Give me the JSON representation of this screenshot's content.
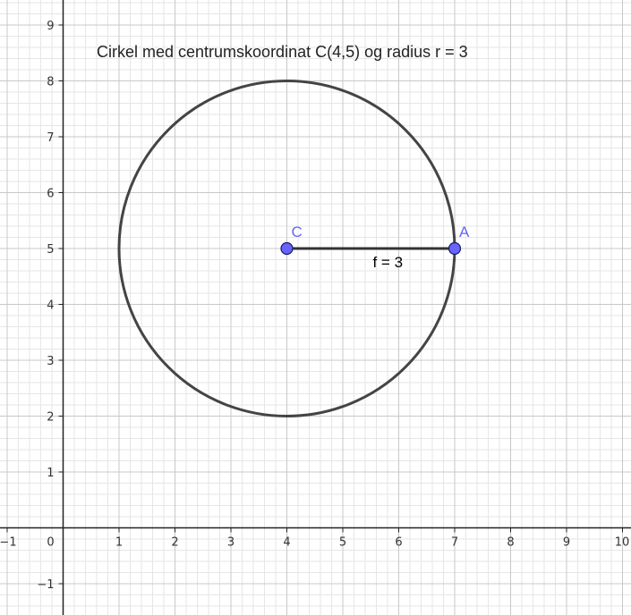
{
  "caption": "Cirkel med centrumskoordinat C(4,5) og radius r = 3",
  "axes": {
    "x_range": [
      -1,
      10
    ],
    "y_range": [
      -1,
      9
    ],
    "x_ticks": [
      "−1",
      "0",
      "1",
      "2",
      "3",
      "4",
      "5",
      "6",
      "7",
      "8",
      "9",
      "10"
    ],
    "y_ticks": [
      "−1",
      "1",
      "2",
      "3",
      "4",
      "5",
      "6",
      "7",
      "8",
      "9"
    ],
    "x_tick_values": [
      -1,
      0,
      1,
      2,
      3,
      4,
      5,
      6,
      7,
      8,
      9,
      10
    ],
    "y_tick_values": [
      -1,
      1,
      2,
      3,
      4,
      5,
      6,
      7,
      8,
      9
    ],
    "major_grid": true,
    "minor_subdivisions": 5
  },
  "circle": {
    "center": [
      4,
      5
    ],
    "radius": 3,
    "color": "#444444"
  },
  "points": [
    {
      "name": "C",
      "label": "C",
      "x": 4,
      "y": 5,
      "color": "#6666ff"
    },
    {
      "name": "A",
      "label": "A",
      "x": 7,
      "y": 5,
      "color": "#6666ff"
    }
  ],
  "segment": {
    "from": "C",
    "to": "A",
    "label": "f = 3",
    "color": "#333333"
  }
}
